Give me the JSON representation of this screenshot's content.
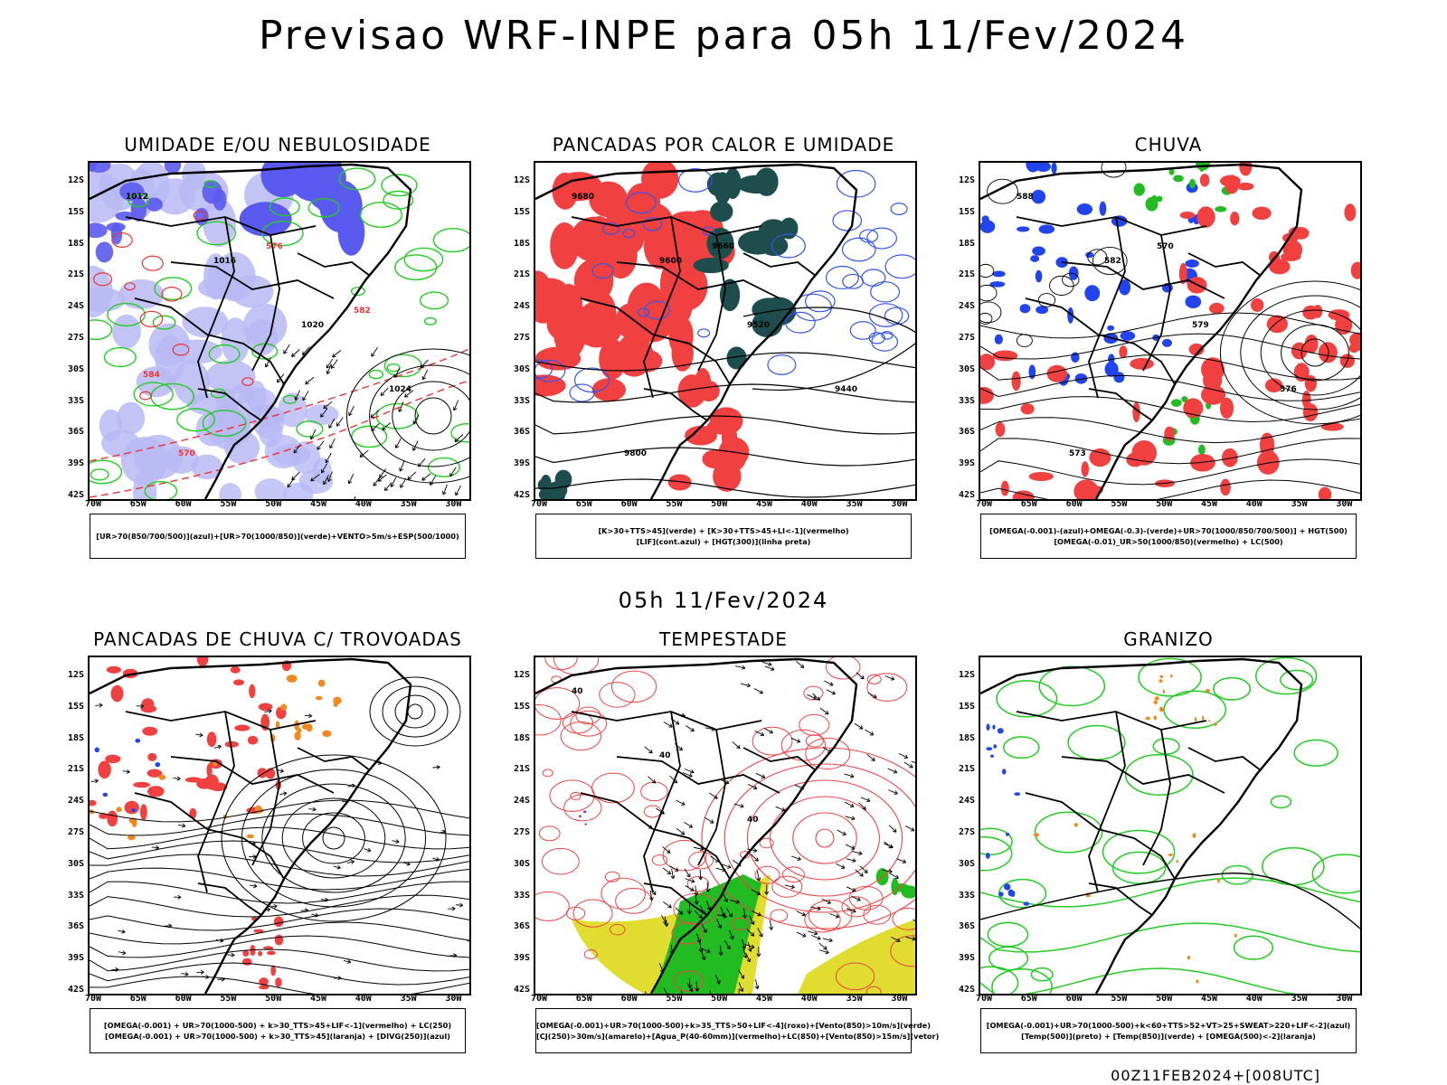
{
  "title": "Previsao WRF-INPE  para 05h 11/Fev/2024",
  "subtitle": "05h 11/Fev/2024",
  "footer": "00Z11FEB2024+[008UTC]",
  "lat_labels": [
    "12S",
    "15S",
    "18S",
    "21S",
    "24S",
    "27S",
    "30S",
    "33S",
    "36S",
    "39S",
    "42S"
  ],
  "lon_labels": [
    "70W",
    "65W",
    "60W",
    "55W",
    "50W",
    "45W",
    "40W",
    "35W",
    "30W"
  ],
  "panels": [
    {
      "title": "UMIDADE E/OU NEBULOSIDADE",
      "legend": [
        "[UR>70(850/700/500)](azul)+[UR>70(1000/850)](verde)+VENTO>5m/s+ESP(500/1000)"
      ],
      "contour_labels": [
        "1012",
        "1016",
        "1020",
        "1024",
        "570",
        "576",
        "582",
        "584"
      ],
      "colors": {
        "humid_high": "#5a5af0",
        "humid_mid": "#b8b8f5",
        "green": "#22cc22",
        "red": "#ee3333"
      }
    },
    {
      "title": "PANCADAS POR CALOR E UMIDADE",
      "legend": [
        "[K>30+TTS>45](verde) + [K>30+TTS>45+LI<-1](vermelho)",
        "[LIF](cont.azul) + [HGT(300)](linha preta)"
      ],
      "contour_labels": [
        "9680",
        "9600",
        "9520",
        "9440",
        "9800",
        "9660"
      ],
      "colors": {
        "red": "#f04040",
        "teal": "#1e4d4d",
        "blue": "#3355ee"
      }
    },
    {
      "title": "CHUVA",
      "legend": [
        "[OMEGA(-0.001)-(azul)+OMEGA(-0.3)-(verde)+UR>70(1000/850/700/500)] + HGT(500)",
        "[OMEGA(-0.01)_UR>50(1000/850)(vermelho) + LC(500)"
      ],
      "contour_labels": [
        "588",
        "582",
        "579",
        "576",
        "573",
        "570"
      ],
      "colors": {
        "red": "#f04040",
        "blue": "#2244ee",
        "green": "#22bb22"
      }
    },
    {
      "title": "PANCADAS DE CHUVA C/ TROVOADAS",
      "legend": [
        "[OMEGA(-0.001) + UR>70(1000-500) + k>30_TTS>45+LIF<-1](vermelho) + LC(250)",
        "[OMEGA(-0.001) + UR>70(1000-500) + k>30_TTS>45](laranja) + [DIVG(250)](azul)"
      ],
      "contour_labels": [],
      "colors": {
        "red": "#f04040",
        "orange": "#f08a20",
        "blue": "#2244ee"
      }
    },
    {
      "title": "TEMPESTADE",
      "legend": [
        "[OMEGA(-0.001)+UR>70(1000-500)+k>35_TTS>50+LIF<-4](roxo)+[Vento(850)>10m/s](verde)",
        "[CJ(250)>30m/s](amarelo)+[Agua_P(40-60mm)](vermelho)+LC(850)+[Vento(850)>15m/s](vetor)"
      ],
      "contour_labels": [
        "40",
        "40",
        "40"
      ],
      "colors": {
        "red": "#ee4444",
        "green": "#22bb22",
        "yellow": "#e0dc30",
        "purple": "#9922cc"
      }
    },
    {
      "title": "GRANIZO",
      "legend": [
        "[OMEGA(-0.001)+UR>70(1000-500)+k<60+TTS>52+VT>25+SWEAT>220+LIF<-2](azul)",
        "[Temp(500)](preto) + [Temp(850)](verde) + [OMEGA(500)<-2](laranja)"
      ],
      "contour_labels": [],
      "colors": {
        "green": "#22cc22",
        "orange": "#f08a20",
        "blue": "#2244ee"
      }
    }
  ]
}
